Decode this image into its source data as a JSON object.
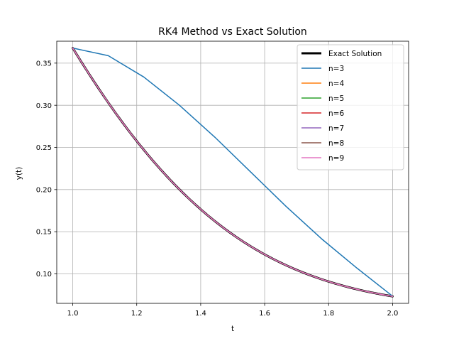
{
  "chart_data": {
    "type": "line",
    "title": "RK4 Method vs Exact Solution",
    "xlabel": "t",
    "ylabel": "y(t)",
    "xlim": [
      0.95,
      2.05
    ],
    "ylim": [
      0.065,
      0.376
    ],
    "xticks": [
      1.0,
      1.2,
      1.4,
      1.6,
      1.8,
      2.0
    ],
    "xtick_labels": [
      "1.0",
      "1.2",
      "1.4",
      "1.6",
      "1.8",
      "2.0"
    ],
    "yticks": [
      0.1,
      0.15,
      0.2,
      0.25,
      0.3,
      0.35
    ],
    "ytick_labels": [
      "0.10",
      "0.15",
      "0.20",
      "0.25",
      "0.30",
      "0.35"
    ],
    "grid": true,
    "legend_position": "top-right",
    "series": [
      {
        "name": "Exact Solution",
        "color": "#000000",
        "style": "thick",
        "x": [
          1.0,
          1.05,
          1.1,
          1.15,
          1.2,
          1.25,
          1.3,
          1.35,
          1.4,
          1.45,
          1.5,
          1.55,
          1.6,
          1.65,
          1.7,
          1.75,
          1.8,
          1.85,
          1.9,
          1.95,
          2.0
        ],
        "y": [
          0.3679,
          0.3658,
          0.3596,
          0.3495,
          0.336,
          0.3199,
          0.3016,
          0.2817,
          0.2609,
          0.2397,
          0.2185,
          0.1977,
          0.1777,
          0.1587,
          0.1409,
          0.1245,
          0.1095,
          0.0959,
          0.0836,
          0.0728,
          0.0733
        ]
      },
      {
        "name": "n=3",
        "color": "#1f77b4",
        "x": [
          1.0,
          1.1111,
          1.2222,
          1.3333,
          1.4444,
          1.5556,
          1.6667,
          1.7778,
          1.8889,
          2.0
        ],
        "y": [
          0.3679,
          0.3588,
          0.3335,
          0.3001,
          0.2621,
          0.2211,
          0.1801,
          0.1416,
          0.1067,
          0.0735
        ]
      },
      {
        "name": "n=4",
        "color": "#ff7f0e",
        "x": [
          1.0,
          2.0
        ],
        "y": [
          0.3679,
          0.0733
        ]
      },
      {
        "name": "n=5",
        "color": "#2ca02c",
        "x": [
          1.0,
          2.0
        ],
        "y": [
          0.3679,
          0.0733
        ]
      },
      {
        "name": "n=6",
        "color": "#d62728",
        "x": [
          1.0,
          2.0
        ],
        "y": [
          0.3679,
          0.0733
        ]
      },
      {
        "name": "n=7",
        "color": "#9467bd",
        "x": [
          1.0,
          2.0
        ],
        "y": [
          0.3679,
          0.0733
        ]
      },
      {
        "name": "n=8",
        "color": "#8c564b",
        "x": [
          1.0,
          2.0
        ],
        "y": [
          0.3679,
          0.0733
        ]
      },
      {
        "name": "n=9",
        "color": "#e377c2",
        "x": [
          1.0,
          2.0
        ],
        "y": [
          0.3679,
          0.0733
        ]
      }
    ]
  }
}
